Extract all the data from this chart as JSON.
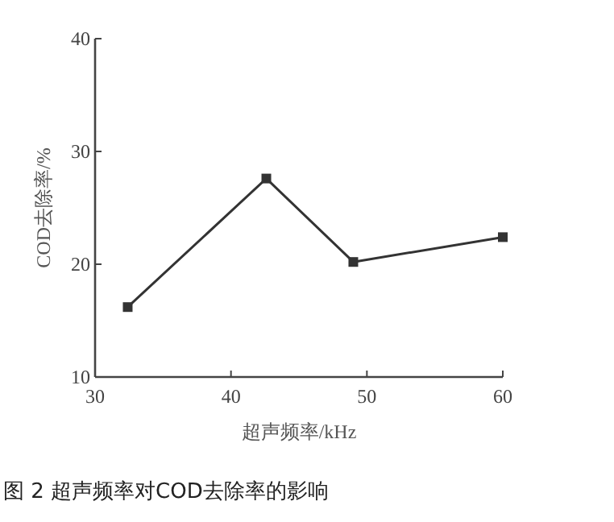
{
  "chart_data": {
    "type": "line",
    "title": "图 2 超声频率对COD去除率的影响",
    "xlabel": "超声频率/kHz",
    "ylabel": "COD去除率/%",
    "x": [
      32.4,
      42.6,
      49.0,
      60
    ],
    "series": [
      {
        "color": "#333333",
        "values": [
          16.2,
          27.6,
          20.2,
          22.4
        ]
      }
    ],
    "xlim": [
      30,
      60
    ],
    "ylim": [
      10,
      40
    ],
    "xticks": [
      30,
      40,
      50,
      60
    ],
    "yticks": [
      10,
      20,
      30,
      40
    ],
    "marker": "square",
    "line_style": "solid"
  }
}
